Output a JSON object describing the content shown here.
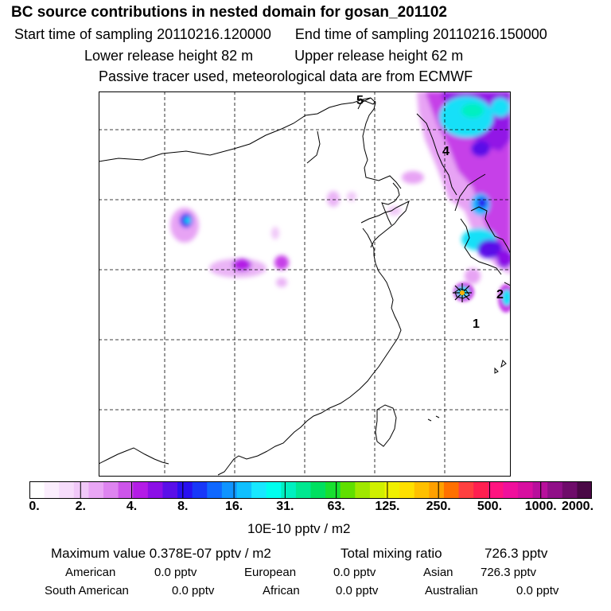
{
  "header": {
    "title": "BC  source contributions in nested domain for gosan_201102",
    "start_label": "Start time of sampling 20110216.120000",
    "end_label": "End time of sampling 20110216.150000",
    "lower_label": "Lower release height   82 m",
    "upper_label": "Upper release height   62 m",
    "info": "Passive tracer used, meteorological data are from ECMWF"
  },
  "map": {
    "station_labels": [
      "1",
      "2",
      "4",
      "5"
    ],
    "receptor_marker": "receptor-star"
  },
  "colorbar": {
    "tick_labels": [
      "0.",
      "2.",
      "4.",
      "8.",
      "16.",
      "31.",
      "63.",
      "125.",
      "250.",
      "500.",
      "1000.",
      "2000."
    ],
    "units": "10E-10 pptv / m2",
    "colors": [
      "#ffffff",
      "#fbeefd",
      "#f6dcfb",
      "#f0c8f8",
      "#e9a6f5",
      "#de84f0",
      "#cd55ea",
      "#b41ce6",
      "#8c10e6",
      "#5a10e8",
      "#2810f0",
      "#1838f8",
      "#1068ff",
      "#1094ff",
      "#10c0ff",
      "#18e8ff",
      "#00ffee",
      "#00f0c0",
      "#00e890",
      "#00e060",
      "#18e030",
      "#60e000",
      "#a0e800",
      "#d0f000",
      "#f0f000",
      "#ffe000",
      "#ffc000",
      "#ffa000",
      "#ff7000",
      "#ff4040",
      "#ff2050",
      "#ff1480",
      "#f0109c",
      "#d810a0",
      "#b8109c",
      "#901088",
      "#6e0c6a",
      "#4a0846"
    ]
  },
  "summary": {
    "max_label": "Maximum value  0.378E-07 pptv / m2",
    "total_label": "Total mixing ratio",
    "total_value": "726.3 pptv",
    "rows": [
      [
        {
          "name": "American",
          "value": "0.0 pptv"
        },
        {
          "name": "European",
          "value": "0.0 pptv"
        },
        {
          "name": "Asian",
          "value": "726.3 pptv"
        }
      ],
      [
        {
          "name": "South American",
          "value": "0.0 pptv"
        },
        {
          "name": "African",
          "value": "0.0 pptv"
        },
        {
          "name": "Australian",
          "value": "0.0 pptv"
        }
      ]
    ]
  }
}
